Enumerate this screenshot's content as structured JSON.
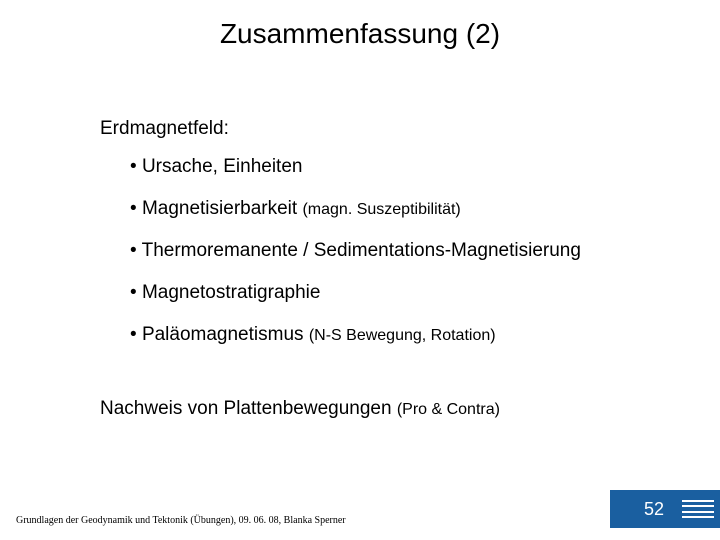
{
  "title": "Zusammenfassung (2)",
  "section_heading": "Erdmagnetfeld:",
  "bullets": [
    {
      "main": "Ursache, Einheiten",
      "sub": ""
    },
    {
      "main": "Magnetisierbarkeit",
      "sub": "(magn. Suszeptibilität)"
    },
    {
      "main": "Thermoremanente / Sedimentations-Magnetisierung",
      "sub": ""
    },
    {
      "main": "Magnetostratigraphie",
      "sub": ""
    },
    {
      "main": "Paläomagnetismus",
      "sub": "(N-S Bewegung, Rotation)"
    }
  ],
  "bottom_line": {
    "main": "Nachweis von Plattenbewegungen",
    "sub": "(Pro & Contra)"
  },
  "footer": "Grundlagen der Geodynamik und Tektonik (Übungen), 09. 06. 08, Blanka Sperner",
  "page_number": "52",
  "colors": {
    "badge_bg": "#1a5fa0",
    "text": "#000000",
    "bg": "#ffffff"
  }
}
